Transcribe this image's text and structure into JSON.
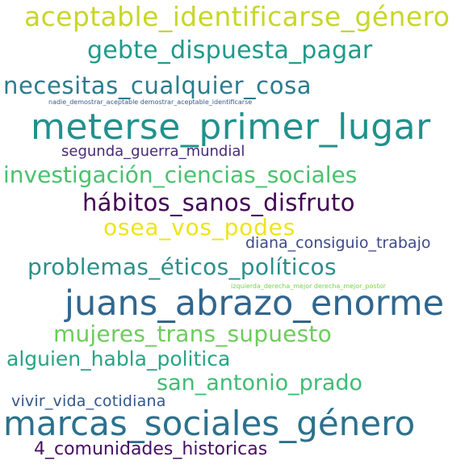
{
  "words": [
    {
      "text": "aceptable_identificarse_género",
      "color": "#c8d629"
    },
    {
      "text": "gebte_dispuesta_pagar",
      "color": "#1f9a8a"
    },
    {
      "text": "necesitas_cualquier_cosa",
      "color": "#2a7c8e"
    },
    {
      "text": "nadie_demostrar_aceptable demostrar_aceptable_identificarse",
      "color": "#3b5b8c"
    },
    {
      "text": "meterse_primer_lugar",
      "color": "#21918c"
    },
    {
      "text": "segunda_guerra_mundial",
      "color": "#482878"
    },
    {
      "text": "investigación_ciencias_sociales",
      "color": "#4ac16d"
    },
    {
      "text": "hábitos_sanos_disfruto",
      "color": "#440154"
    },
    {
      "text": "osea_vos_podes",
      "color": "#ede51b"
    },
    {
      "text": "diana_consiguio_trabajo",
      "color": "#3e4a89"
    },
    {
      "text": "problemas_éticos_políticos",
      "color": "#2b8f8b"
    },
    {
      "text": "izquierda_derecha_mejor derecha_mejor_postor",
      "color": "#7ad151"
    },
    {
      "text": "juans_abrazo_enorme",
      "color": "#31668e"
    },
    {
      "text": "mujeres_trans_supuesto",
      "color": "#6ccd5a"
    },
    {
      "text": "alguien_habla_politica",
      "color": "#25a584"
    },
    {
      "text": "san_antonio_prado",
      "color": "#3fbc73"
    },
    {
      "text": "vivir_vida_cotidiana",
      "color": "#31568c"
    },
    {
      "text": "marcas_sociales_género",
      "color": "#2c718e"
    },
    {
      "text": "4_comunidades_historicas",
      "color": "#471063"
    }
  ]
}
